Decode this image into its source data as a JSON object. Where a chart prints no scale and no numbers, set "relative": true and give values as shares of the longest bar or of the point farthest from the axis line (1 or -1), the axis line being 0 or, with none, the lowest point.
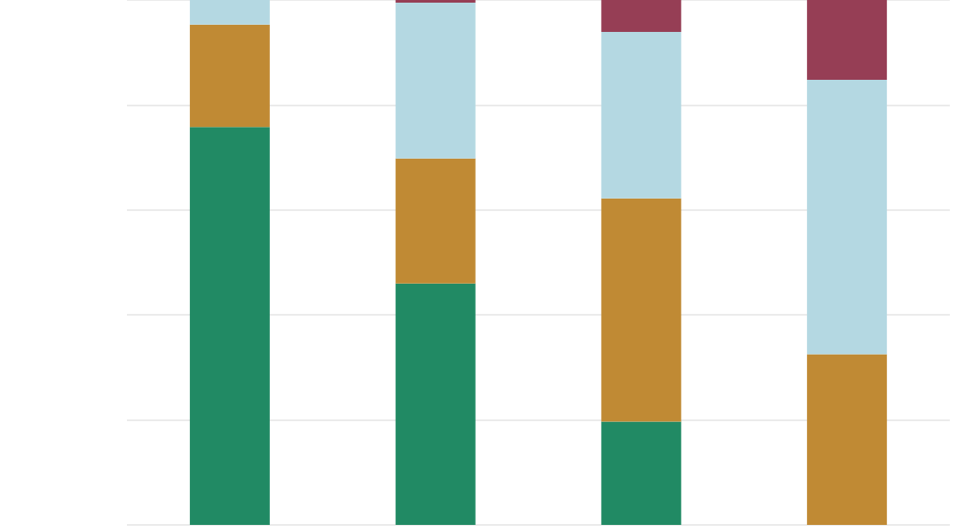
{
  "chart_data": {
    "type": "bar",
    "relative": true,
    "stacked": true,
    "grid": "y",
    "categories": [
      null,
      null,
      null,
      null
    ],
    "series": [
      {
        "color": "#218a64",
        "values": [
          0.758,
          0.46,
          0.197,
          0
        ]
      },
      {
        "color": "#c08a34",
        "values": [
          0.195,
          0.238,
          0.425,
          0.325
        ]
      },
      {
        "color": "#b4d8e2",
        "values": [
          0.047,
          0.297,
          0.317,
          0.523
        ]
      },
      {
        "color": "#963e55",
        "values": [
          0,
          0.005,
          0.061,
          0.152
        ]
      }
    ]
  }
}
